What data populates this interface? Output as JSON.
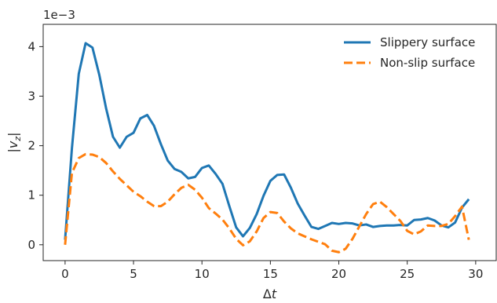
{
  "chart_data": {
    "type": "line",
    "title": "",
    "xlabel": "Δt",
    "ylabel": "|v_z|",
    "y_offset_label": "1e−3",
    "xlim": [
      -1.6,
      31.5
    ],
    "ylim": [
      -0.00032,
      0.00445
    ],
    "x_ticks": [
      0,
      5,
      10,
      15,
      20,
      25,
      30
    ],
    "y_ticks": [
      0,
      0.001,
      0.002,
      0.003,
      0.004
    ],
    "y_tick_labels": [
      "0",
      "1",
      "2",
      "3",
      "4"
    ],
    "grid": false,
    "legend_position": "upper right",
    "series": [
      {
        "name": "Slippery surface",
        "color": "#1f77b4",
        "dash": "solid",
        "x": [
          0,
          0.5,
          1.0,
          1.5,
          2.0,
          2.5,
          3.0,
          3.5,
          4.0,
          4.5,
          5.0,
          5.5,
          6.0,
          6.5,
          7.0,
          7.5,
          8.0,
          8.5,
          9.0,
          9.5,
          10.0,
          10.5,
          11.0,
          11.5,
          12.0,
          12.5,
          13.0,
          13.5,
          14.0,
          14.5,
          15.0,
          15.5,
          16.0,
          16.5,
          17.0,
          17.5,
          18.0,
          18.5,
          19.0,
          19.5,
          20.0,
          20.5,
          21.0,
          21.5,
          22.0,
          22.5,
          23.0,
          23.5,
          24.0,
          24.5,
          25.0,
          25.5,
          26.0,
          26.5,
          27.0,
          27.5,
          28.0,
          28.5,
          29.0,
          29.5
        ],
        "y": [
          0.0001,
          0.00195,
          0.00345,
          0.00407,
          0.00398,
          0.00343,
          0.00275,
          0.00218,
          0.00196,
          0.00218,
          0.00226,
          0.00255,
          0.00262,
          0.0024,
          0.00203,
          0.0017,
          0.00153,
          0.00147,
          0.00134,
          0.00137,
          0.00155,
          0.0016,
          0.00143,
          0.00123,
          0.00078,
          0.00035,
          0.00017,
          0.00034,
          0.00062,
          0.00099,
          0.00129,
          0.00141,
          0.00142,
          0.00115,
          0.00083,
          0.00059,
          0.00036,
          0.00032,
          0.00038,
          0.00044,
          0.00042,
          0.00044,
          0.00043,
          0.00039,
          0.00041,
          0.00036,
          0.00038,
          0.00039,
          0.00039,
          0.0004,
          0.00039,
          0.0005,
          0.00051,
          0.00054,
          0.00049,
          0.00039,
          0.00035,
          0.00045,
          0.00075,
          0.00092
        ]
      },
      {
        "name": "Non-slip surface",
        "color": "#ff7f0e",
        "dash": "dashed",
        "x": [
          0,
          0.5,
          1.0,
          1.5,
          2.0,
          2.5,
          3.0,
          3.5,
          4.0,
          4.5,
          5.0,
          5.5,
          6.0,
          6.5,
          7.0,
          7.5,
          8.0,
          8.5,
          9.0,
          9.5,
          10.0,
          10.5,
          11.0,
          11.5,
          12.0,
          12.5,
          13.0,
          13.5,
          14.0,
          14.5,
          15.0,
          15.5,
          16.0,
          16.5,
          17.0,
          17.5,
          18.0,
          18.5,
          19.0,
          19.5,
          20.0,
          20.5,
          21.0,
          21.5,
          22.0,
          22.5,
          23.0,
          23.5,
          24.0,
          24.5,
          25.0,
          25.5,
          26.0,
          26.5,
          27.0,
          27.5,
          28.0,
          28.5,
          29.0,
          29.5
        ],
        "y": [
          0.0,
          0.00145,
          0.00175,
          0.00183,
          0.00182,
          0.00177,
          0.00165,
          0.00148,
          0.00133,
          0.0012,
          0.00107,
          0.00098,
          0.00087,
          0.00078,
          0.00078,
          0.00087,
          0.00102,
          0.00115,
          0.00121,
          0.00111,
          0.00095,
          0.00074,
          0.00063,
          0.00051,
          0.00033,
          0.00012,
          -1e-05,
          7e-05,
          0.00027,
          0.00054,
          0.00066,
          0.00064,
          0.00047,
          0.00033,
          0.00023,
          0.00017,
          0.00011,
          6e-05,
          1e-05,
          -0.00012,
          -0.00015,
          -8e-05,
          0.00012,
          0.00037,
          0.00062,
          0.00082,
          0.00087,
          0.00076,
          0.00062,
          0.00048,
          0.00028,
          0.00021,
          0.00027,
          0.00039,
          0.00038,
          0.00038,
          0.00042,
          0.00058,
          0.00077,
          0.0001
        ]
      }
    ]
  }
}
